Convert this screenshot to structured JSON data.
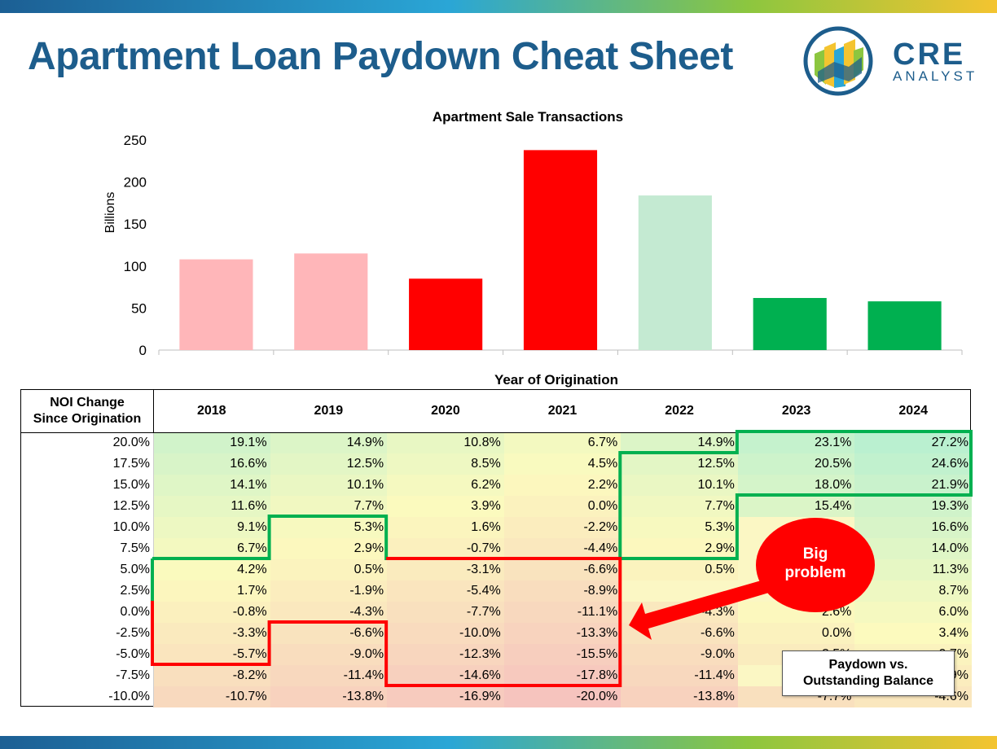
{
  "header": {
    "title": "Apartment Loan Paydown Cheat Sheet",
    "logo_main": "CRE",
    "logo_sub": "ANALYST"
  },
  "colors": {
    "brand_blue": "#1d5d8c",
    "bar_light_red": "#ffb6b9",
    "bar_red": "#ff0000",
    "bar_light_green": "#c4ead2",
    "bar_green": "#00b050",
    "outline_green": "#00b050",
    "outline_red": "#ff0000"
  },
  "chart_data": {
    "type": "bar",
    "title": "Apartment Sale Transactions",
    "xlabel": "Year of Origination",
    "ylabel": "Billions",
    "categories": [
      "2018",
      "2019",
      "2020",
      "2021",
      "2022",
      "2023",
      "2024"
    ],
    "values": [
      108,
      115,
      85,
      238,
      184,
      62,
      58
    ],
    "bar_colors": [
      "#ffb6b9",
      "#ffb6b9",
      "#ff0000",
      "#ff0000",
      "#c4ead2",
      "#00b050",
      "#00b050"
    ],
    "ylim": [
      0,
      250
    ],
    "yticks": [
      0,
      50,
      100,
      150,
      200,
      250
    ],
    "grid": false,
    "legend": "none"
  },
  "table": {
    "corner_label_line1": "NOI Change",
    "corner_label_line2": "Since Origination",
    "columns": [
      "2018",
      "2019",
      "2020",
      "2021",
      "2022",
      "2023",
      "2024"
    ],
    "rows": [
      {
        "label": "20.0%",
        "values": [
          "19.1%",
          "14.9%",
          "10.8%",
          "6.7%",
          "14.9%",
          "23.1%",
          "27.2%"
        ]
      },
      {
        "label": "17.5%",
        "values": [
          "16.6%",
          "12.5%",
          "8.5%",
          "4.5%",
          "12.5%",
          "20.5%",
          "24.6%"
        ]
      },
      {
        "label": "15.0%",
        "values": [
          "14.1%",
          "10.1%",
          "6.2%",
          "2.2%",
          "10.1%",
          "18.0%",
          "21.9%"
        ]
      },
      {
        "label": "12.5%",
        "values": [
          "11.6%",
          "7.7%",
          "3.9%",
          "0.0%",
          "7.7%",
          "15.4%",
          "19.3%"
        ]
      },
      {
        "label": "10.0%",
        "values": [
          "9.1%",
          "5.3%",
          "1.6%",
          "-2.2%",
          "5.3%",
          "",
          "16.6%"
        ]
      },
      {
        "label": "7.5%",
        "values": [
          "6.7%",
          "2.9%",
          "-0.7%",
          "-4.4%",
          "2.9%",
          "",
          "14.0%"
        ]
      },
      {
        "label": "5.0%",
        "values": [
          "4.2%",
          "0.5%",
          "-3.1%",
          "-6.6%",
          "0.5%",
          "",
          "11.3%"
        ]
      },
      {
        "label": "2.5%",
        "values": [
          "1.7%",
          "-1.9%",
          "-5.4%",
          "-8.9%",
          "",
          "",
          "8.7%"
        ]
      },
      {
        "label": "0.0%",
        "values": [
          "-0.8%",
          "-4.3%",
          "-7.7%",
          "-11.1%",
          "-4.3%",
          "2.6%",
          "6.0%"
        ]
      },
      {
        "label": "-2.5%",
        "values": [
          "-3.3%",
          "-6.6%",
          "-10.0%",
          "-13.3%",
          "-6.6%",
          "0.0%",
          "3.4%"
        ]
      },
      {
        "label": "-5.0%",
        "values": [
          "-5.7%",
          "-9.0%",
          "-12.3%",
          "-15.5%",
          "-9.0%",
          "-2.5%",
          "0.7%"
        ]
      },
      {
        "label": "-7.5%",
        "values": [
          "-8.2%",
          "-11.4%",
          "-14.6%",
          "-17.8%",
          "-11.4%",
          "",
          "-1.9%"
        ]
      },
      {
        "label": "-10.0%",
        "values": [
          "-10.7%",
          "-13.8%",
          "-16.9%",
          "-20.0%",
          "-13.8%",
          "-7.7%",
          "-4.6%"
        ]
      }
    ]
  },
  "callout": {
    "line1": "Big",
    "line2": "problem"
  },
  "legend_note": {
    "line1": "Paydown vs.",
    "line2": "Outstanding Balance"
  }
}
